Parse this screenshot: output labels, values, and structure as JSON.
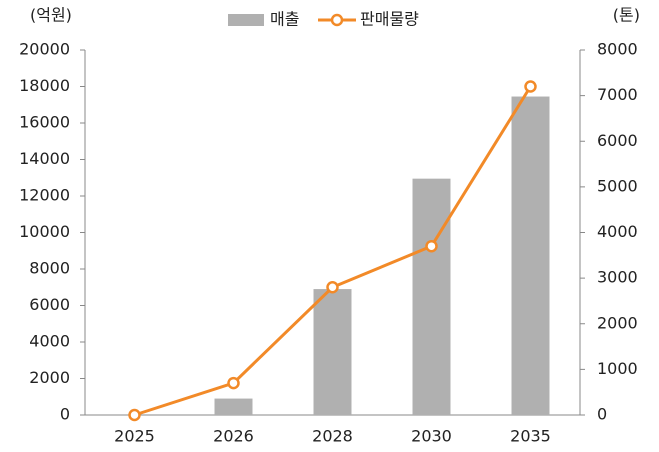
{
  "chart_data": {
    "type": "bar",
    "ylabel": "(억원)",
    "y2label": "(톤)",
    "categories": [
      "2025",
      "2026",
      "2028",
      "2030",
      "2035"
    ],
    "series": [
      {
        "name": "매출",
        "type": "bar",
        "color": "#b0b0b0",
        "values": [
          0,
          900,
          6900,
          12950,
          17450
        ]
      },
      {
        "name": "판매물량",
        "type": "line",
        "axis": "y2",
        "color": "#f28a28",
        "values": [
          0,
          700,
          2800,
          3700,
          7200
        ]
      }
    ],
    "ylim": [
      0,
      20000
    ],
    "yticks": [
      0,
      2000,
      4000,
      6000,
      8000,
      10000,
      12000,
      14000,
      16000,
      18000,
      20000
    ],
    "y2lim": [
      0,
      8000
    ],
    "y2ticks": [
      0,
      1000,
      2000,
      3000,
      4000,
      5000,
      6000,
      7000,
      8000
    ],
    "grid": false
  }
}
